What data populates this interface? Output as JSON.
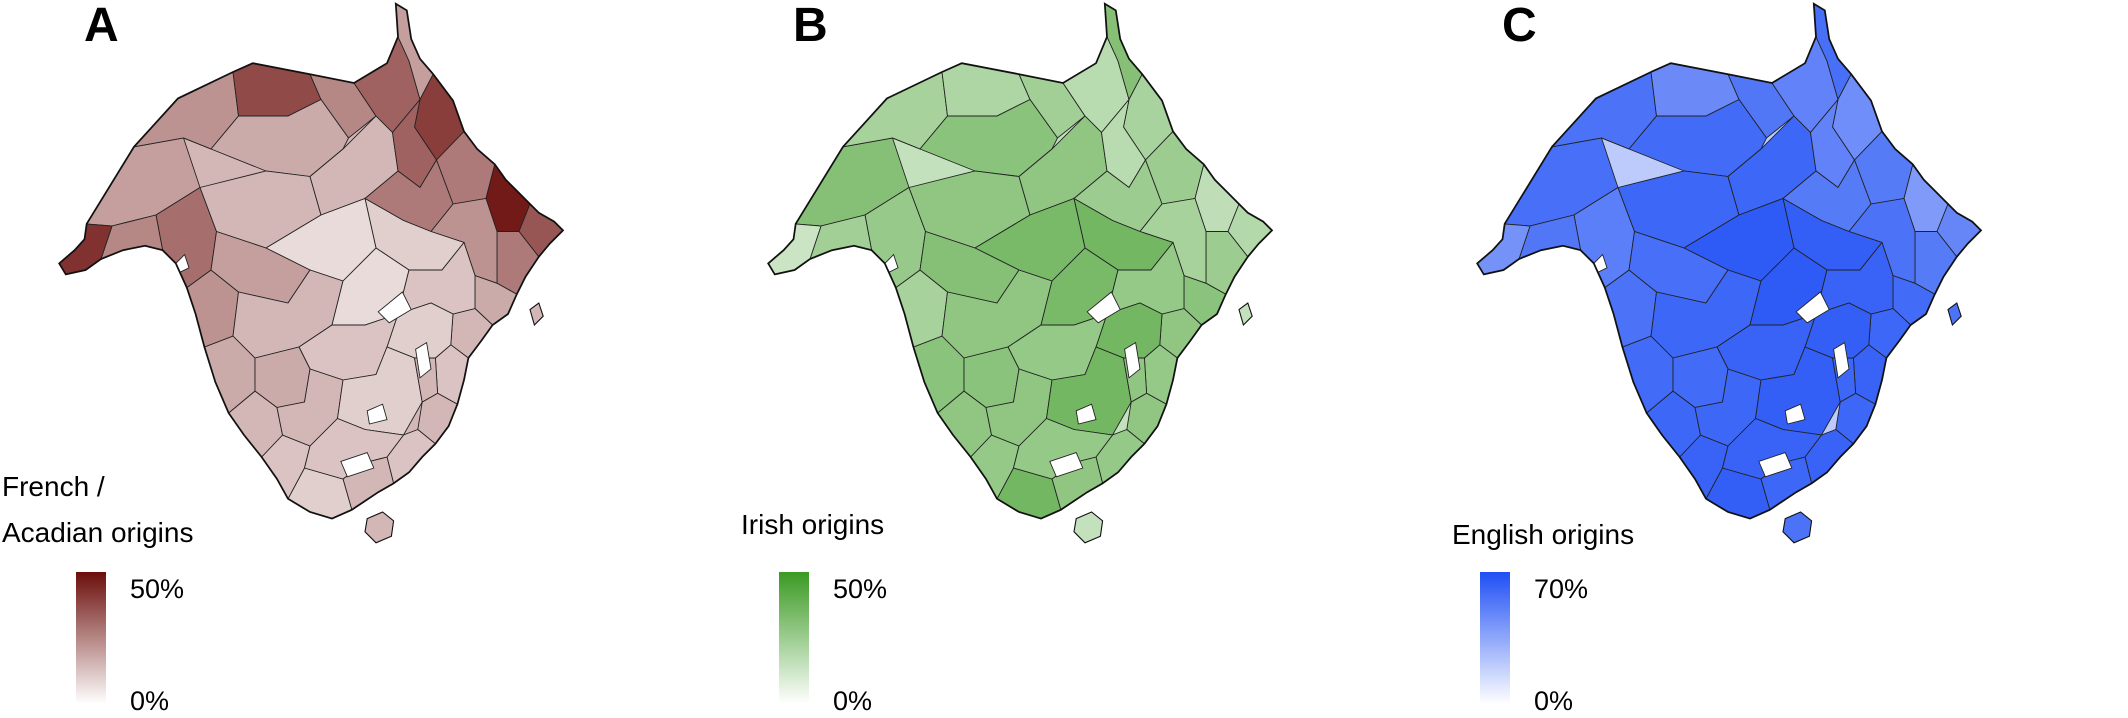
{
  "panels": [
    {
      "letter": "A",
      "legend_title_line1": "French /",
      "legend_title_line2": "Acadian origins",
      "legend_max": "50%",
      "legend_min": "0%",
      "color_high": "#6b0e0b",
      "color_low": "#ffffff"
    },
    {
      "letter": "B",
      "legend_title_line1": "Irish origins",
      "legend_max": "50%",
      "legend_min": "0%",
      "color_high": "#3a9a22",
      "color_low": "#ffffff"
    },
    {
      "letter": "C",
      "legend_title_line1": "English origins",
      "legend_max": "70%",
      "legend_min": "0%",
      "color_high": "#1f4ff5",
      "color_low": "#ffffff"
    }
  ]
}
